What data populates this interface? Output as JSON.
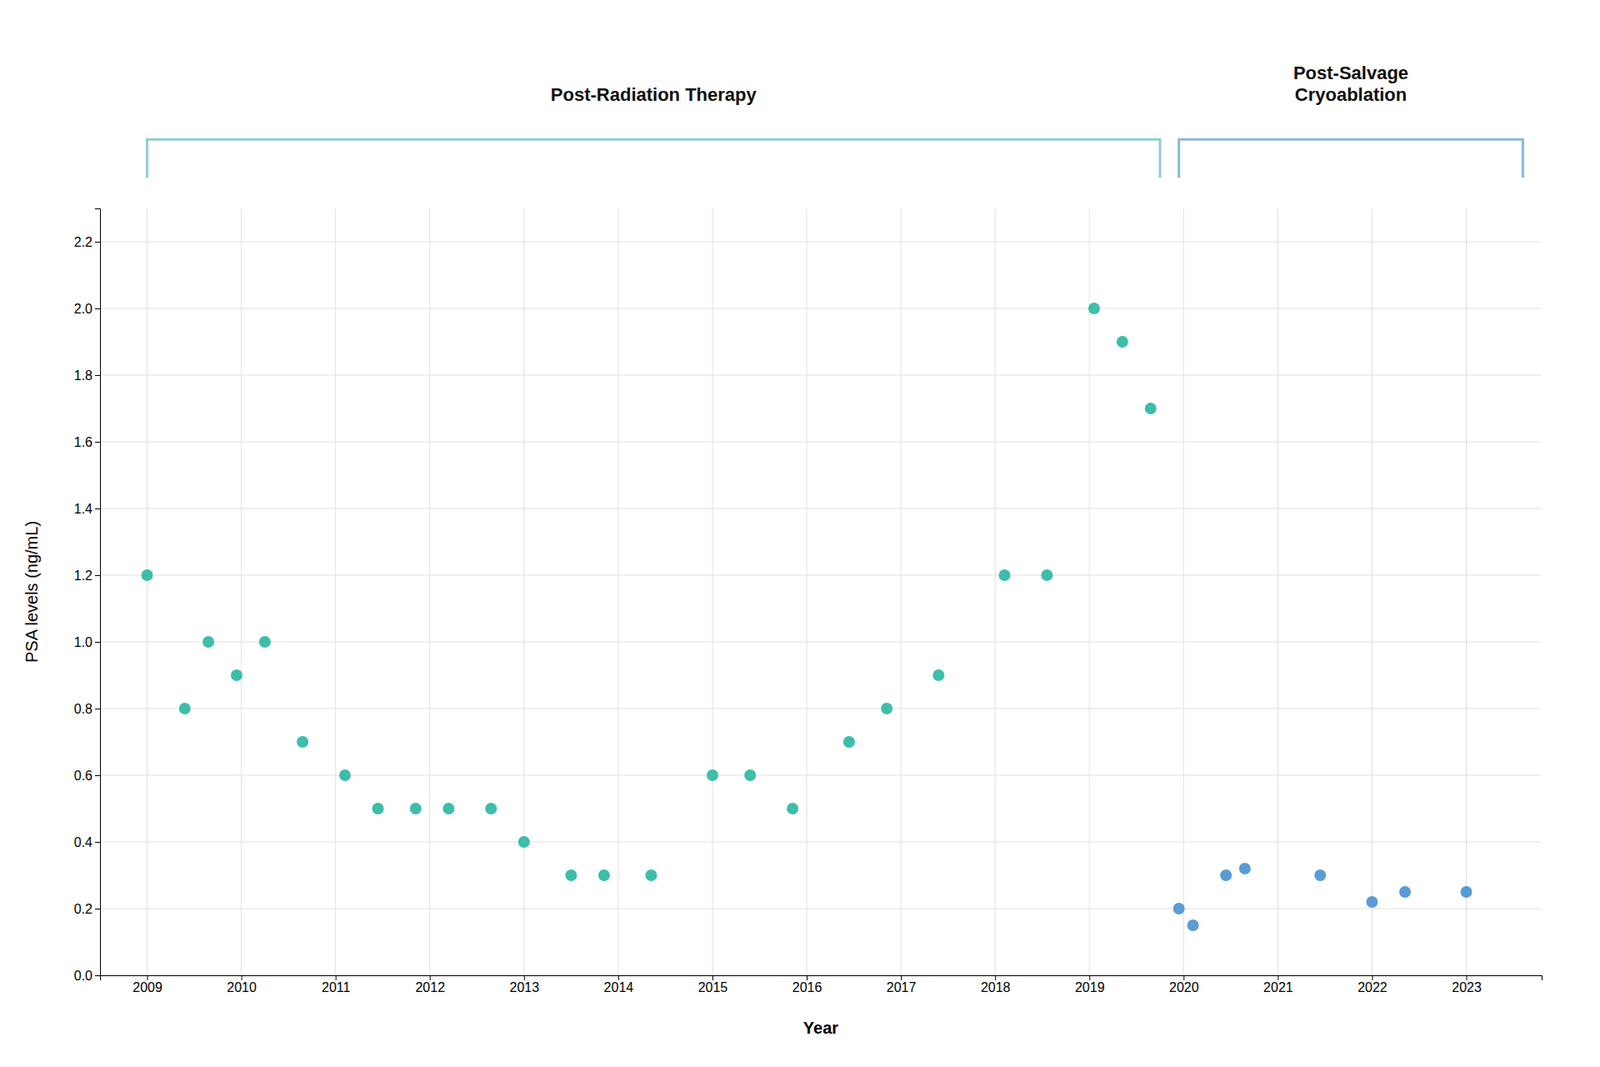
{
  "chart_data": {
    "type": "scatter",
    "xlabel": "Year",
    "ylabel": "PSA levels (ng/mL)",
    "grid": true,
    "series": [
      {
        "color": "#3dbdaa",
        "x": [
          2009,
          2009.4,
          2009.65,
          2009.95,
          2010.25,
          2010.65,
          2011.1,
          2011.45,
          2011.85,
          2012.2,
          2012.65,
          2013.0,
          2013.5,
          2013.85,
          2014.35,
          2015.0,
          2015.4,
          2015.85,
          2016.45,
          2016.85,
          2017.4,
          2018.1,
          2018.55,
          2019.05,
          2019.35,
          2019.65
        ],
        "values": [
          1.2,
          0.8,
          1.0,
          0.9,
          1.0,
          0.7,
          0.6,
          0.5,
          0.5,
          0.5,
          0.5,
          0.4,
          0.3,
          0.3,
          0.3,
          0.6,
          0.6,
          0.5,
          0.7,
          0.8,
          0.9,
          1.2,
          1.2,
          2.0,
          1.9,
          1.7
        ]
      },
      {
        "color": "#5b9bd5",
        "x": [
          2019.95,
          2020.1,
          2020.45,
          2020.65,
          2021.45,
          2022.0,
          2022.35,
          2023.0
        ],
        "values": [
          0.2,
          0.15,
          0.3,
          0.32,
          0.3,
          0.22,
          0.25,
          0.25
        ]
      }
    ],
    "annotations": [
      {
        "text": "Post-Radiation Therapy",
        "x_start": 2009.0,
        "x_end": 2019.75,
        "color": "#8ecfcf"
      },
      {
        "text": "Post-Salvage\nCryoablation",
        "x_start": 2019.95,
        "x_end": 2023.6,
        "color": "#8ab8d8"
      }
    ],
    "xlim": [
      2008.5,
      2023.8
    ],
    "xticks": [
      2009,
      2010,
      2011,
      2012,
      2013,
      2014,
      2015,
      2016,
      2017,
      2018,
      2019,
      2020,
      2021,
      2022,
      2023
    ],
    "ylim": [
      0,
      2.3
    ],
    "yticks": [
      {
        "value": 0,
        "label": "0.0"
      },
      0.2,
      0.4,
      0.6,
      0.8,
      {
        "value": 1.0,
        "label": "1.0"
      },
      1.2,
      1.4,
      1.6,
      1.8,
      {
        "value": 2.0,
        "label": "2.0"
      },
      2.2
    ]
  }
}
